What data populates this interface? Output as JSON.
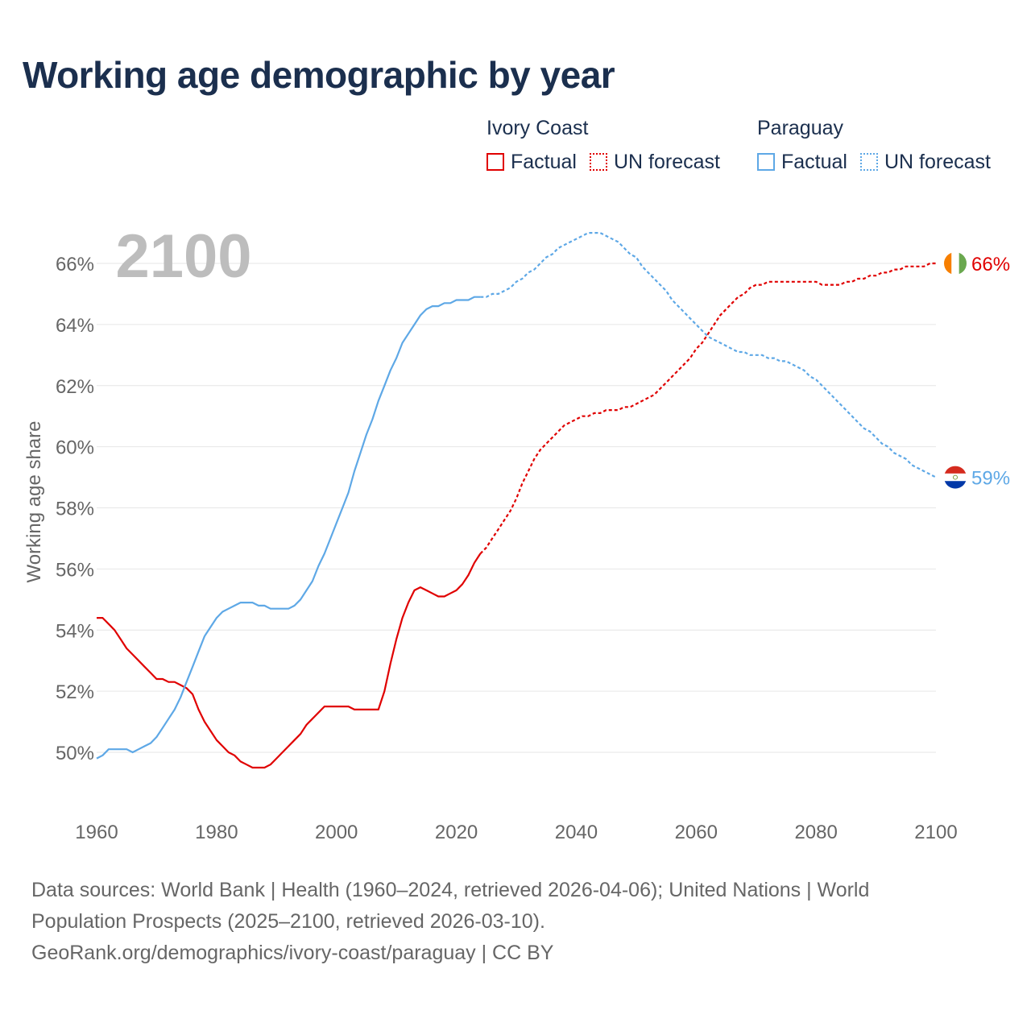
{
  "title": "Working age demographic by year",
  "legend": {
    "groups": [
      {
        "country": "Ivory Coast",
        "color": "#e00000",
        "factual_label": "Factual",
        "forecast_label": "UN forecast"
      },
      {
        "country": "Paraguay",
        "color": "#5ea8e6",
        "factual_label": "Factual",
        "forecast_label": "UN forecast"
      }
    ]
  },
  "year_overlay": "2100",
  "end_labels": {
    "ivory_coast": "66%",
    "paraguay": "59%"
  },
  "flags": {
    "ivory_coast": "ivory-coast-flag-icon",
    "paraguay": "paraguay-flag-icon"
  },
  "chart_data": {
    "type": "line",
    "title": "Working age demographic by year",
    "xlabel": "",
    "ylabel": "Working age share",
    "xlim": [
      1960,
      2100
    ],
    "ylim": [
      48,
      67.5
    ],
    "x_ticks": [
      1960,
      1980,
      2000,
      2020,
      2040,
      2060,
      2080,
      2100
    ],
    "y_ticks": [
      50,
      52,
      54,
      56,
      58,
      60,
      62,
      64,
      66
    ],
    "y_tick_labels": [
      "50%",
      "52%",
      "54%",
      "56%",
      "58%",
      "60%",
      "62%",
      "64%",
      "66%"
    ],
    "factual_range": [
      1960,
      2024
    ],
    "forecast_range": [
      2025,
      2100
    ],
    "series": [
      {
        "name": "Ivory Coast",
        "color": "#e00000",
        "points": [
          [
            1960,
            54.4
          ],
          [
            1961,
            54.4
          ],
          [
            1962,
            54.2
          ],
          [
            1963,
            54.0
          ],
          [
            1964,
            53.7
          ],
          [
            1965,
            53.4
          ],
          [
            1966,
            53.2
          ],
          [
            1967,
            53.0
          ],
          [
            1968,
            52.8
          ],
          [
            1969,
            52.6
          ],
          [
            1970,
            52.4
          ],
          [
            1971,
            52.4
          ],
          [
            1972,
            52.3
          ],
          [
            1973,
            52.3
          ],
          [
            1974,
            52.2
          ],
          [
            1975,
            52.1
          ],
          [
            1976,
            51.9
          ],
          [
            1977,
            51.4
          ],
          [
            1978,
            51.0
          ],
          [
            1979,
            50.7
          ],
          [
            1980,
            50.4
          ],
          [
            1981,
            50.2
          ],
          [
            1982,
            50.0
          ],
          [
            1983,
            49.9
          ],
          [
            1984,
            49.7
          ],
          [
            1985,
            49.6
          ],
          [
            1986,
            49.5
          ],
          [
            1987,
            49.5
          ],
          [
            1988,
            49.5
          ],
          [
            1989,
            49.6
          ],
          [
            1990,
            49.8
          ],
          [
            1991,
            50.0
          ],
          [
            1992,
            50.2
          ],
          [
            1993,
            50.4
          ],
          [
            1994,
            50.6
          ],
          [
            1995,
            50.9
          ],
          [
            1996,
            51.1
          ],
          [
            1997,
            51.3
          ],
          [
            1998,
            51.5
          ],
          [
            1999,
            51.5
          ],
          [
            2000,
            51.5
          ],
          [
            2001,
            51.5
          ],
          [
            2002,
            51.5
          ],
          [
            2003,
            51.4
          ],
          [
            2004,
            51.4
          ],
          [
            2005,
            51.4
          ],
          [
            2006,
            51.4
          ],
          [
            2007,
            51.4
          ],
          [
            2008,
            52.0
          ],
          [
            2009,
            52.9
          ],
          [
            2010,
            53.7
          ],
          [
            2011,
            54.4
          ],
          [
            2012,
            54.9
          ],
          [
            2013,
            55.3
          ],
          [
            2014,
            55.4
          ],
          [
            2015,
            55.3
          ],
          [
            2016,
            55.2
          ],
          [
            2017,
            55.1
          ],
          [
            2018,
            55.1
          ],
          [
            2019,
            55.2
          ],
          [
            2020,
            55.3
          ],
          [
            2021,
            55.5
          ],
          [
            2022,
            55.8
          ],
          [
            2023,
            56.2
          ],
          [
            2024,
            56.5
          ],
          [
            2025,
            56.7
          ],
          [
            2026,
            57.0
          ],
          [
            2027,
            57.3
          ],
          [
            2028,
            57.6
          ],
          [
            2029,
            57.9
          ],
          [
            2030,
            58.3
          ],
          [
            2031,
            58.8
          ],
          [
            2032,
            59.2
          ],
          [
            2033,
            59.6
          ],
          [
            2034,
            59.9
          ],
          [
            2035,
            60.1
          ],
          [
            2036,
            60.3
          ],
          [
            2037,
            60.5
          ],
          [
            2038,
            60.7
          ],
          [
            2039,
            60.8
          ],
          [
            2040,
            60.9
          ],
          [
            2041,
            61.0
          ],
          [
            2042,
            61.0
          ],
          [
            2043,
            61.1
          ],
          [
            2044,
            61.1
          ],
          [
            2045,
            61.2
          ],
          [
            2046,
            61.2
          ],
          [
            2047,
            61.2
          ],
          [
            2048,
            61.3
          ],
          [
            2049,
            61.3
          ],
          [
            2050,
            61.4
          ],
          [
            2051,
            61.5
          ],
          [
            2052,
            61.6
          ],
          [
            2053,
            61.7
          ],
          [
            2054,
            61.9
          ],
          [
            2055,
            62.1
          ],
          [
            2056,
            62.3
          ],
          [
            2057,
            62.5
          ],
          [
            2058,
            62.7
          ],
          [
            2059,
            62.9
          ],
          [
            2060,
            63.2
          ],
          [
            2061,
            63.4
          ],
          [
            2062,
            63.7
          ],
          [
            2063,
            64.0
          ],
          [
            2064,
            64.3
          ],
          [
            2065,
            64.5
          ],
          [
            2066,
            64.7
          ],
          [
            2067,
            64.9
          ],
          [
            2068,
            65.0
          ],
          [
            2069,
            65.2
          ],
          [
            2070,
            65.3
          ],
          [
            2071,
            65.3
          ],
          [
            2072,
            65.4
          ],
          [
            2073,
            65.4
          ],
          [
            2074,
            65.4
          ],
          [
            2075,
            65.4
          ],
          [
            2076,
            65.4
          ],
          [
            2077,
            65.4
          ],
          [
            2078,
            65.4
          ],
          [
            2079,
            65.4
          ],
          [
            2080,
            65.4
          ],
          [
            2081,
            65.3
          ],
          [
            2082,
            65.3
          ],
          [
            2083,
            65.3
          ],
          [
            2084,
            65.3
          ],
          [
            2085,
            65.4
          ],
          [
            2086,
            65.4
          ],
          [
            2087,
            65.5
          ],
          [
            2088,
            65.5
          ],
          [
            2089,
            65.6
          ],
          [
            2090,
            65.6
          ],
          [
            2091,
            65.7
          ],
          [
            2092,
            65.7
          ],
          [
            2093,
            65.8
          ],
          [
            2094,
            65.8
          ],
          [
            2095,
            65.9
          ],
          [
            2096,
            65.9
          ],
          [
            2097,
            65.9
          ],
          [
            2098,
            65.9
          ],
          [
            2099,
            66.0
          ],
          [
            2100,
            66.0
          ]
        ]
      },
      {
        "name": "Paraguay",
        "color": "#5ea8e6",
        "points": [
          [
            1960,
            49.8
          ],
          [
            1961,
            49.9
          ],
          [
            1962,
            50.1
          ],
          [
            1963,
            50.1
          ],
          [
            1964,
            50.1
          ],
          [
            1965,
            50.1
          ],
          [
            1966,
            50.0
          ],
          [
            1967,
            50.1
          ],
          [
            1968,
            50.2
          ],
          [
            1969,
            50.3
          ],
          [
            1970,
            50.5
          ],
          [
            1971,
            50.8
          ],
          [
            1972,
            51.1
          ],
          [
            1973,
            51.4
          ],
          [
            1974,
            51.8
          ],
          [
            1975,
            52.3
          ],
          [
            1976,
            52.8
          ],
          [
            1977,
            53.3
          ],
          [
            1978,
            53.8
          ],
          [
            1979,
            54.1
          ],
          [
            1980,
            54.4
          ],
          [
            1981,
            54.6
          ],
          [
            1982,
            54.7
          ],
          [
            1983,
            54.8
          ],
          [
            1984,
            54.9
          ],
          [
            1985,
            54.9
          ],
          [
            1986,
            54.9
          ],
          [
            1987,
            54.8
          ],
          [
            1988,
            54.8
          ],
          [
            1989,
            54.7
          ],
          [
            1990,
            54.7
          ],
          [
            1991,
            54.7
          ],
          [
            1992,
            54.7
          ],
          [
            1993,
            54.8
          ],
          [
            1994,
            55.0
          ],
          [
            1995,
            55.3
          ],
          [
            1996,
            55.6
          ],
          [
            1997,
            56.1
          ],
          [
            1998,
            56.5
          ],
          [
            1999,
            57.0
          ],
          [
            2000,
            57.5
          ],
          [
            2001,
            58.0
          ],
          [
            2002,
            58.5
          ],
          [
            2003,
            59.2
          ],
          [
            2004,
            59.8
          ],
          [
            2005,
            60.4
          ],
          [
            2006,
            60.9
          ],
          [
            2007,
            61.5
          ],
          [
            2008,
            62.0
          ],
          [
            2009,
            62.5
          ],
          [
            2010,
            62.9
          ],
          [
            2011,
            63.4
          ],
          [
            2012,
            63.7
          ],
          [
            2013,
            64.0
          ],
          [
            2014,
            64.3
          ],
          [
            2015,
            64.5
          ],
          [
            2016,
            64.6
          ],
          [
            2017,
            64.6
          ],
          [
            2018,
            64.7
          ],
          [
            2019,
            64.7
          ],
          [
            2020,
            64.8
          ],
          [
            2021,
            64.8
          ],
          [
            2022,
            64.8
          ],
          [
            2023,
            64.9
          ],
          [
            2024,
            64.9
          ],
          [
            2025,
            64.9
          ],
          [
            2026,
            65.0
          ],
          [
            2027,
            65.0
          ],
          [
            2028,
            65.1
          ],
          [
            2029,
            65.2
          ],
          [
            2030,
            65.4
          ],
          [
            2031,
            65.5
          ],
          [
            2032,
            65.7
          ],
          [
            2033,
            65.8
          ],
          [
            2034,
            66.0
          ],
          [
            2035,
            66.2
          ],
          [
            2036,
            66.3
          ],
          [
            2037,
            66.5
          ],
          [
            2038,
            66.6
          ],
          [
            2039,
            66.7
          ],
          [
            2040,
            66.8
          ],
          [
            2041,
            66.9
          ],
          [
            2042,
            67.0
          ],
          [
            2043,
            67.0
          ],
          [
            2044,
            67.0
          ],
          [
            2045,
            66.9
          ],
          [
            2046,
            66.8
          ],
          [
            2047,
            66.7
          ],
          [
            2048,
            66.5
          ],
          [
            2049,
            66.3
          ],
          [
            2050,
            66.2
          ],
          [
            2051,
            65.9
          ],
          [
            2052,
            65.7
          ],
          [
            2053,
            65.5
          ],
          [
            2054,
            65.3
          ],
          [
            2055,
            65.1
          ],
          [
            2056,
            64.8
          ],
          [
            2057,
            64.6
          ],
          [
            2058,
            64.4
          ],
          [
            2059,
            64.2
          ],
          [
            2060,
            64.0
          ],
          [
            2061,
            63.8
          ],
          [
            2062,
            63.6
          ],
          [
            2063,
            63.5
          ],
          [
            2064,
            63.4
          ],
          [
            2065,
            63.3
          ],
          [
            2066,
            63.2
          ],
          [
            2067,
            63.1
          ],
          [
            2068,
            63.1
          ],
          [
            2069,
            63.0
          ],
          [
            2070,
            63.0
          ],
          [
            2071,
            63.0
          ],
          [
            2072,
            62.9
          ],
          [
            2073,
            62.9
          ],
          [
            2074,
            62.8
          ],
          [
            2075,
            62.8
          ],
          [
            2076,
            62.7
          ],
          [
            2077,
            62.6
          ],
          [
            2078,
            62.5
          ],
          [
            2079,
            62.3
          ],
          [
            2080,
            62.2
          ],
          [
            2081,
            62.0
          ],
          [
            2082,
            61.8
          ],
          [
            2083,
            61.6
          ],
          [
            2084,
            61.4
          ],
          [
            2085,
            61.2
          ],
          [
            2086,
            61.0
          ],
          [
            2087,
            60.8
          ],
          [
            2088,
            60.6
          ],
          [
            2089,
            60.5
          ],
          [
            2090,
            60.3
          ],
          [
            2091,
            60.1
          ],
          [
            2092,
            60.0
          ],
          [
            2093,
            59.8
          ],
          [
            2094,
            59.7
          ],
          [
            2095,
            59.6
          ],
          [
            2096,
            59.4
          ],
          [
            2097,
            59.3
          ],
          [
            2098,
            59.2
          ],
          [
            2099,
            59.1
          ],
          [
            2100,
            59.0
          ]
        ]
      }
    ]
  },
  "footer": {
    "line1": "Data sources: World Bank | Health (1960–2024, retrieved 2026-04-06); United Nations | World",
    "line2": "Population Prospects (2025–2100, retrieved 2026-03-10).",
    "line3": "GeoRank.org/demographics/ivory-coast/paraguay | CC BY"
  }
}
